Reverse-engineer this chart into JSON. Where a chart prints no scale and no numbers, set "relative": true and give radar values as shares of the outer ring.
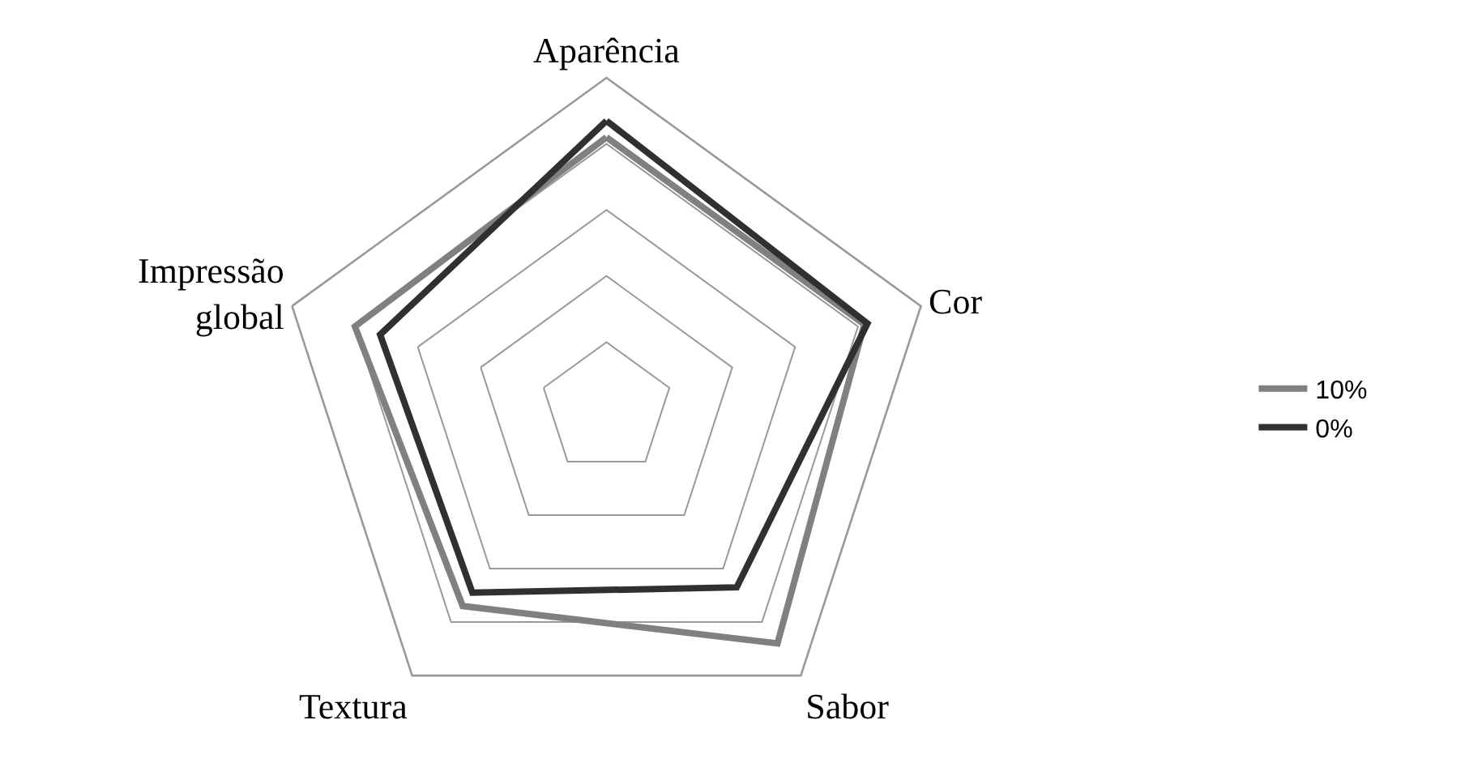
{
  "chart_data": {
    "type": "radar",
    "relative": true,
    "categories": [
      "Aparência",
      "Cor",
      "Sabor",
      "Textura",
      "Impressão global"
    ],
    "series": [
      {
        "name": "10%",
        "color": "#808080",
        "values": [
          0.82,
          0.82,
          0.88,
          0.74,
          0.8
        ]
      },
      {
        "name": "0%",
        "color": "#303030",
        "values": [
          0.87,
          0.83,
          0.67,
          0.69,
          0.72
        ]
      }
    ],
    "grid": true,
    "legend": "right",
    "marker": "none",
    "line_style": "solid"
  }
}
